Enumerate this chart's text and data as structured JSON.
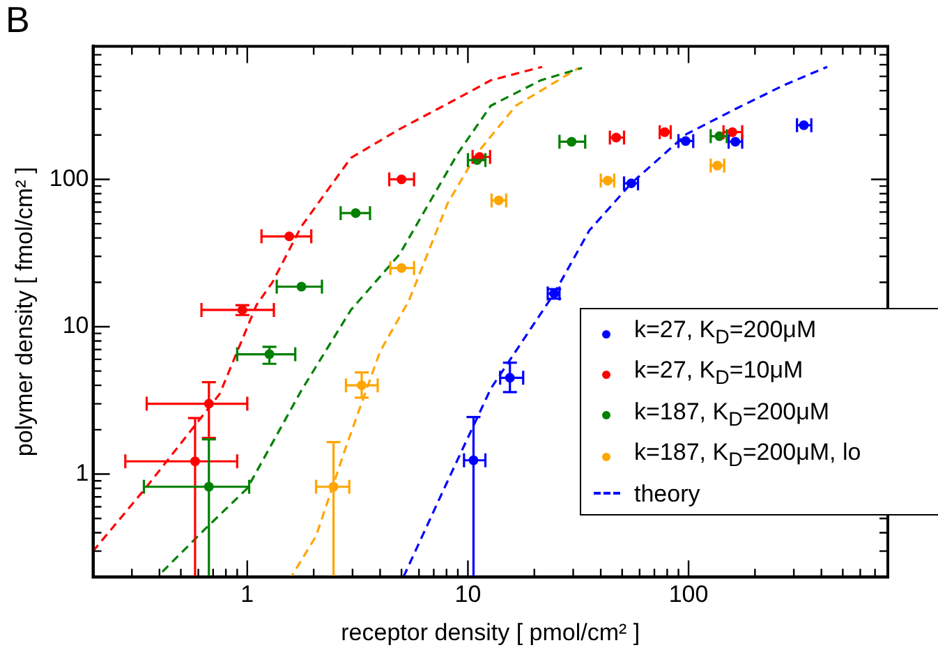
{
  "chart_data": {
    "type": "scatter",
    "title": "B",
    "xlabel": "receptor density [ pmol/cm² ]",
    "ylabel": "polymer density [ fmol/cm² ]",
    "log": "xy",
    "xlim": [
      0.2,
      800
    ],
    "ylim": [
      0.2,
      800
    ],
    "xticks": [
      1,
      10,
      100
    ],
    "yticks": [
      1,
      10,
      100
    ],
    "grid": false,
    "legend": "bottom right",
    "marker": "circle",
    "series": [
      {
        "name": "k=27, K$_{D}$=200μM",
        "color": "#0000ff",
        "x": [
          10.6,
          15.5,
          24.6,
          55,
          97,
          163,
          333
        ],
        "values": [
          1.24,
          4.5,
          16.8,
          94,
          182,
          180,
          233
        ],
        "errors": [
          [
            0.2,
            2.44
          ],
          [
            3.6,
            5.7
          ],
          [
            15.5,
            18
          ],
          null,
          null,
          null,
          null
        ],
        "xerrors": [
          [
            9.6,
            12
          ],
          [
            14,
            17.8
          ],
          [
            23,
            26
          ],
          [
            51,
            59
          ],
          [
            90,
            105
          ],
          [
            152,
            175
          ],
          [
            310,
            360
          ]
        ]
      },
      {
        "name": "k=27, K$_{D}$=10μM",
        "color": "#ff0000",
        "x": [
          0.58,
          0.67,
          0.95,
          1.55,
          5.0,
          11.3,
          47,
          78,
          158
        ],
        "values": [
          1.22,
          3.0,
          13,
          41,
          100,
          142,
          192,
          209,
          209
        ],
        "errors": [
          [
            0.2,
            2.4
          ],
          [
            1.76,
            4.2
          ],
          [
            12,
            14
          ],
          null,
          null,
          null,
          null,
          null,
          null
        ],
        "xerrors": [
          [
            0.28,
            0.9
          ],
          [
            0.35,
            1.0
          ],
          [
            0.62,
            1.32
          ],
          [
            1.16,
            1.95
          ],
          [
            4.4,
            5.7
          ],
          [
            10.5,
            12.6
          ],
          [
            44,
            51
          ],
          [
            74,
            83
          ],
          [
            144,
            175
          ]
        ]
      },
      {
        "name": "k=187, K$_{D}$=200μM",
        "color": "#008000",
        "x": [
          0.67,
          1.26,
          1.76,
          3.1,
          11,
          29.5,
          138
        ],
        "values": [
          0.82,
          6.5,
          18.7,
          59,
          135,
          180,
          196
        ],
        "errors": [
          [
            0.2,
            1.72
          ],
          [
            5.6,
            7.3
          ],
          null,
          null,
          null,
          null,
          null
        ],
        "xerrors": [
          [
            0.34,
            1.02
          ],
          [
            0.9,
            1.65
          ],
          [
            1.36,
            2.18
          ],
          [
            2.65,
            3.6
          ],
          [
            10,
            12
          ],
          [
            26,
            34
          ],
          [
            126,
            149
          ]
        ]
      },
      {
        "name": "k=187, K$_{D}$=200μM, lo",
        "color": "#ffa500",
        "x": [
          2.46,
          3.3,
          5.0,
          13.8,
          43,
          135
        ],
        "values": [
          0.82,
          4.0,
          25,
          72,
          98,
          124
        ],
        "errors": [
          [
            0.2,
            1.65
          ],
          [
            3.3,
            4.9
          ],
          null,
          null,
          null,
          null
        ],
        "xerrors": [
          [
            2.05,
            2.9
          ],
          [
            2.8,
            3.9
          ],
          [
            4.45,
            5.7
          ],
          [
            12.8,
            14.9
          ],
          [
            40,
            46
          ],
          [
            126,
            145
          ]
        ]
      },
      {
        "name": "theory",
        "type": "line",
        "color": "#0000ff",
        "line_style": "dashed",
        "marker": "none",
        "x": [
          5.1,
          8.1,
          12.7,
          24.6,
          35.5,
          55,
          98,
          163,
          270,
          425
        ],
        "values": [
          0.2,
          0.9,
          3.8,
          16.8,
          45,
          94,
          203,
          300,
          435,
          580
        ]
      },
      {
        "type": "line",
        "color": "#ff0000",
        "line_style": "dashed",
        "marker": "none",
        "x": [
          0.2,
          0.35,
          0.75,
          1.1,
          1.3,
          1.76,
          2.95,
          4.9,
          9,
          12.7,
          21.7
        ],
        "values": [
          0.3,
          0.82,
          3.5,
          14,
          20,
          48,
          140,
          219,
          355,
          470,
          580
        ]
      },
      {
        "type": "line",
        "color": "#008000",
        "line_style": "dashed",
        "marker": "none",
        "x": [
          0.39,
          0.64,
          1.0,
          1.76,
          2.95,
          4.9,
          9,
          12.7,
          21.4,
          32.9
        ],
        "values": [
          0.2,
          0.42,
          0.8,
          3.7,
          13,
          31,
          150,
          316,
          470,
          570
        ]
      },
      {
        "type": "line",
        "color": "#ffa500",
        "line_style": "dashed",
        "marker": "none",
        "x": [
          1.58,
          2.05,
          2.78,
          4.0,
          5.4,
          8.1,
          11,
          16.5,
          31.8
        ],
        "values": [
          0.2,
          0.38,
          1.48,
          6.8,
          15,
          69,
          150,
          316,
          570
        ]
      }
    ]
  }
}
